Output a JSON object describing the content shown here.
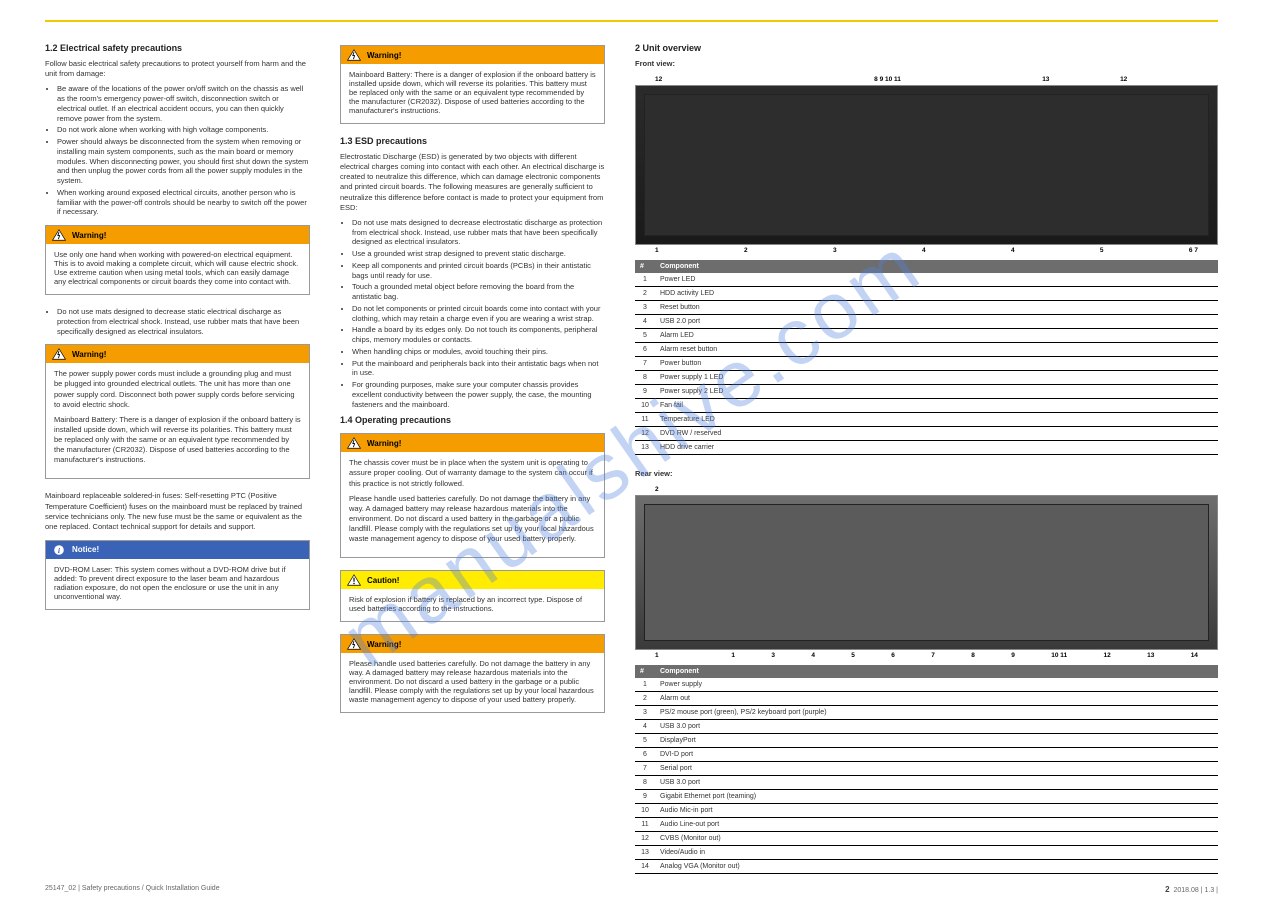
{
  "watermark_text": "manualshive.com",
  "footer": {
    "left": "25147_02 | Safety precautions / Quick Installation Guide",
    "right": "2018.08 | 1.3 |",
    "page": "2"
  },
  "col1": {
    "sec1_title": "1.2  Electrical safety precautions",
    "sec1_intro": "Follow basic electrical safety precautions to protect yourself from harm and the unit from damage:",
    "sec1_items": [
      "Be aware of the locations of the power on/off switch on the chassis as well as the room's emergency power-off switch, disconnection switch or electrical outlet. If an electrical accident occurs, you can then quickly remove power from the system.",
      "Do not work alone when working with high voltage components.",
      "Power should always be disconnected from the system when removing or installing main system components, such as the main board or memory modules. When disconnecting power, you should first shut down the system and then unplug the power cords from all the power supply modules in the system.",
      "When working around exposed electrical circuits, another person who is familiar with the power-off controls should be nearby to switch off the power if necessary."
    ],
    "alert1_head": "Warning!",
    "alert1_body": "Use only one hand when working with powered-on electrical equipment. This is to avoid making a complete circuit, which will cause electric shock. Use extreme caution when using metal tools, which can easily damage any electrical components or circuit boards they come into contact with.",
    "sec1_items_b": [
      "Do not use mats designed to decrease static electrical discharge as protection from electrical shock. Instead, use rubber mats that have been specifically designed as electrical insulators."
    ],
    "alert2_head": "Warning!",
    "alert2_body": "The power supply power cords must include a grounding plug and must be plugged into grounded electrical outlets. The unit has more than one power supply cord. Disconnect both power supply cords before servicing to avoid electric shock.",
    "alert2_sub": "Mainboard Battery: There is a danger of explosion if the onboard battery is installed upside down, which will reverse its polarities. This battery must be replaced only with the same or an equivalent type recommended by the manufacturer (CR2032). Dispose of used batteries according to the manufacturer's instructions.",
    "sec1_last": "Mainboard replaceable soldered-in fuses: Self-resetting PTC (Positive Temperature Coefficient) fuses on the mainboard must be replaced by trained service technicians only. The new fuse must be the same or equivalent as the one replaced. Contact technical support for details and support.",
    "notice_head": "Notice!",
    "notice_body": "DVD-ROM Laser: This system comes without a DVD-ROM drive but if added: To prevent direct exposure to the laser beam and hazardous radiation exposure, do not open the enclosure or use the unit in any unconventional way."
  },
  "col2": {
    "alert_top_head": "Warning!",
    "alert_top_body": "Mainboard Battery: There is a danger of explosion if the onboard battery is installed upside down, which will reverse its polarities. This battery must be replaced only with the same or an equivalent type recommended by the manufacturer (CR2032). Dispose of used batteries according to the manufacturer's instructions.",
    "sec2a_title": "1.3  ESD precautions",
    "sec2a_p1": "Electrostatic Discharge (ESD) is generated by two objects with different electrical charges coming into contact with each other. An electrical discharge is created to neutralize this difference, which can damage electronic components and printed circuit boards. The following measures are generally sufficient to neutralize this difference before contact is made to protect your equipment from ESD:",
    "sec2a_items": [
      "Do not use mats designed to decrease electrostatic discharge as protection from electrical shock. Instead, use rubber mats that have been specifically designed as electrical insulators.",
      "Use a grounded wrist strap designed to prevent static discharge.",
      "Keep all components and printed circuit boards (PCBs) in their antistatic bags until ready for use.",
      "Touch a grounded metal object before removing the board from the antistatic bag.",
      "Do not let components or printed circuit boards come into contact with your clothing, which may retain a charge even if you are wearing a wrist strap.",
      "Handle a board by its edges only. Do not touch its components, peripheral chips, memory modules or contacts.",
      "When handling chips or modules, avoid touching their pins.",
      "Put the mainboard and peripherals back into their antistatic bags when not in use.",
      "For grounding purposes, make sure your computer chassis provides excellent conductivity between the power supply, the case, the mounting fasteners and the mainboard."
    ],
    "sec2b_title": "1.4  Operating precautions",
    "alert3_head": "Warning!",
    "alert3_body": "The chassis cover must be in place when the system unit is operating to assure proper cooling. Out of warranty damage to the system can occur if this practice is not strictly followed.",
    "alert3_sub": "Please handle used batteries carefully. Do not damage the battery in any way. A damaged battery may release hazardous materials into the environment. Do not discard a used battery in the garbage or a public landfill. Please comply with the regulations set up by your local hazardous waste management agency to dispose of your used battery properly.",
    "alert_caution_head": "Caution!",
    "alert_caution_body": "Risk of explosion if battery is replaced by an incorrect type. Dispose of used batteries according to the instructions.",
    "alert4_head": "Warning!",
    "alert4_body": "Please handle used batteries carefully. Do not damage the battery in any way. A damaged battery may release hazardous materials into the environment. Do not discard a used battery in the garbage or a public landfill. Please comply with the regulations set up by your local hazardous waste management agency to dispose of your used battery properly."
  },
  "col3": {
    "sec3_title": "2  Unit overview",
    "front_title": "Front view:",
    "front_callouts_top": [
      "12",
      "",
      "",
      "8 9 10 11",
      "",
      "13",
      "12",
      ""
    ],
    "front_callouts_bottom": [
      "1",
      "2",
      "3",
      "4",
      "4",
      "5",
      "6 7"
    ],
    "front_table_head": [
      "#",
      "Component"
    ],
    "front_rows": [
      [
        "1",
        "Power LED"
      ],
      [
        "2",
        "HDD activity LED"
      ],
      [
        "3",
        "Reset button"
      ],
      [
        "4",
        "USB 2.0 port"
      ],
      [
        "5",
        "Alarm LED"
      ],
      [
        "6",
        "Alarm reset button"
      ],
      [
        "7",
        "Power button"
      ],
      [
        "8",
        "Power supply 1 LED"
      ],
      [
        "9",
        "Power supply 2 LED"
      ],
      [
        "10",
        "Fan fail"
      ],
      [
        "11",
        "Temperature LED"
      ],
      [
        "12",
        "DVD RW / reserved"
      ],
      [
        "13",
        "HDD drive carrier"
      ]
    ],
    "rear_title": "Rear view:",
    "rear_callouts_top": [
      "",
      "",
      "",
      "",
      "",
      "",
      "2",
      "",
      "",
      "",
      "",
      "",
      ""
    ],
    "rear_callouts_bottom": [
      "1",
      "",
      "1",
      "3",
      "4",
      "5",
      "6",
      "7",
      "8",
      "9",
      "10 11",
      "12",
      "13",
      "14"
    ],
    "rear_table_head": [
      "#",
      "Component"
    ],
    "rear_rows": [
      [
        "1",
        "Power supply"
      ],
      [
        "2",
        "Alarm out"
      ],
      [
        "3",
        "PS/2 mouse port (green), PS/2 keyboard port (purple)"
      ],
      [
        "4",
        "USB 3.0 port"
      ],
      [
        "5",
        "DisplayPort"
      ],
      [
        "6",
        "DVI-D port"
      ],
      [
        "7",
        "Serial port"
      ],
      [
        "8",
        "USB 3.0 port"
      ],
      [
        "9",
        "Gigabit Ethernet port (teaming)"
      ],
      [
        "10",
        "Audio Mic-in port"
      ],
      [
        "11",
        "Audio Line-out port"
      ],
      [
        "12",
        "CVBS (Monitor out)"
      ],
      [
        "13",
        "Video/Audio in"
      ],
      [
        "14",
        "Analog VGA (Monitor out)"
      ]
    ]
  },
  "icons": {
    "warning_label": "Warning!",
    "caution_label": "Caution!",
    "notice_label": "Notice!"
  }
}
